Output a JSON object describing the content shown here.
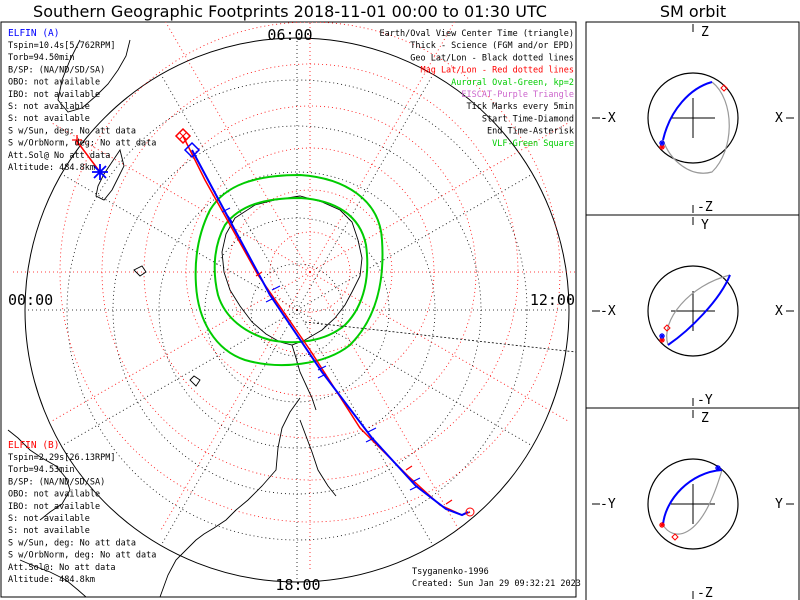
{
  "title": "Southern Geographic Footprints 2018-11-01 00:00 to 01:30 UTC",
  "orbit_title": "SM orbit",
  "mlt_labels": {
    "top": "06:00",
    "left": "00:00",
    "right": "12:00",
    "bottom": "18:00"
  },
  "legend": [
    {
      "text": "Earth/Oval View Center Time (triangle)",
      "color": "#000000"
    },
    {
      "text": "Thick - Science (FGM and/or EPD)",
      "color": "#000000"
    },
    {
      "text": "Geo Lat/Lon - Black dotted lines",
      "color": "#000000"
    },
    {
      "text": "Mag Lat/Lon - Red dotted lines",
      "color": "#ff0000"
    },
    {
      "text": "Auroral Oval-Green, kp=2",
      "color": "#00cc00"
    },
    {
      "text": "EISCAT-Purple Triangle",
      "color": "#cc66cc"
    },
    {
      "text": "Tick Marks every 5min",
      "color": "#000000"
    },
    {
      "text": "Start Time-Diamond",
      "color": "#000000"
    },
    {
      "text": "End Time-Asterisk",
      "color": "#000000"
    },
    {
      "text": "VLF-Green Square",
      "color": "#00cc00"
    }
  ],
  "probe_a": {
    "name": "ELFIN (A)",
    "color": "#0000ff",
    "lines": [
      "Tspin=10.4s[5.762RPM]",
      "Torb=94.50min",
      "B/SP: (NA/ND/SD/SA)",
      "OBO: not available",
      "IBO: not available",
      "S: not available",
      "S: not available",
      "S w/Sun, deg: No att data",
      "S w/OrbNorm, deg: No att data",
      "Att.Sol@ No att data",
      "Altitude: 484.8km"
    ]
  },
  "probe_b": {
    "name": "ELFIN (B)",
    "color": "#ff0000",
    "lines": [
      "Tspin=2.29s[26.13RPM]",
      "Torb=94.53min",
      "B/SP: (NA/ND/SD/SA)",
      "OBO: not available",
      "IBO: not available",
      "S: not available",
      "S: not available",
      "S w/Sun, deg: No att data",
      "S w/OrbNorm, deg: No att data",
      "Att.Sol@: No att data",
      "Altitude: 484.8km"
    ]
  },
  "footer": {
    "credit": "Tsyganenko-1996",
    "created": "Created: Sun Jan 29 09:32:21 2023"
  },
  "orbit_panels": [
    {
      "top": "Z",
      "bottom": "-Z",
      "left": "-X",
      "right": "X"
    },
    {
      "top": "Y",
      "bottom": "-Y",
      "left": "-X",
      "right": "X"
    },
    {
      "top": "Z",
      "bottom": "-Z",
      "left": "-Y",
      "right": "Y"
    }
  ],
  "colors": {
    "probe_a": "#0000ff",
    "probe_b": "#ff0000",
    "oval": "#00cc00",
    "mag_grid": "#ff0000",
    "geo_grid": "#000000",
    "orbit_gray": "#999999"
  }
}
